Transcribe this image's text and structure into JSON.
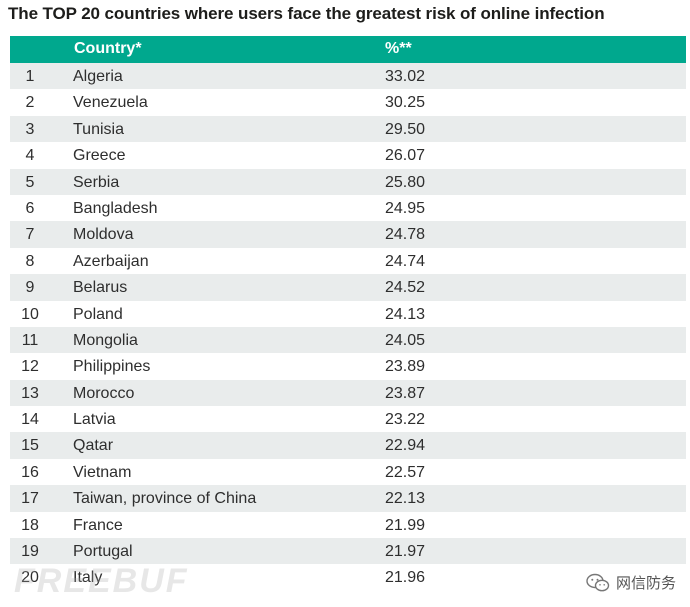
{
  "title": "The TOP 20 countries where users face the greatest risk of online infection",
  "table": {
    "headers": {
      "rank": "",
      "country": "Country*",
      "percent": "%**"
    },
    "rows": [
      {
        "rank": "1",
        "country": "Algeria",
        "percent": "33.02"
      },
      {
        "rank": "2",
        "country": "Venezuela",
        "percent": "30.25"
      },
      {
        "rank": "3",
        "country": "Tunisia",
        "percent": "29.50"
      },
      {
        "rank": "4",
        "country": "Greece",
        "percent": "26.07"
      },
      {
        "rank": "5",
        "country": "Serbia",
        "percent": "25.80"
      },
      {
        "rank": "6",
        "country": "Bangladesh",
        "percent": "24.95"
      },
      {
        "rank": "7",
        "country": "Moldova",
        "percent": "24.78"
      },
      {
        "rank": "8",
        "country": "Azerbaijan",
        "percent": "24.74"
      },
      {
        "rank": "9",
        "country": "Belarus",
        "percent": "24.52"
      },
      {
        "rank": "10",
        "country": "Poland",
        "percent": "24.13"
      },
      {
        "rank": "11",
        "country": "Mongolia",
        "percent": "24.05"
      },
      {
        "rank": "12",
        "country": "Philippines",
        "percent": "23.89"
      },
      {
        "rank": "13",
        "country": "Morocco",
        "percent": "23.87"
      },
      {
        "rank": "14",
        "country": "Latvia",
        "percent": "23.22"
      },
      {
        "rank": "15",
        "country": "Qatar",
        "percent": "22.94"
      },
      {
        "rank": "16",
        "country": "Vietnam",
        "percent": "22.57"
      },
      {
        "rank": "17",
        "country": "Taiwan, province of China",
        "percent": "22.13"
      },
      {
        "rank": "18",
        "country": "France",
        "percent": "21.99"
      },
      {
        "rank": "19",
        "country": "Portugal",
        "percent": "21.97"
      },
      {
        "rank": "20",
        "country": "Italy",
        "percent": "21.96"
      }
    ]
  },
  "watermarks": {
    "left_text": "FREEBUF",
    "right_text": "网信防务",
    "right_icon": "wechat-icon"
  },
  "colors": {
    "header_bg": "#00a88e",
    "alt_row_bg": "#e9ecec"
  }
}
